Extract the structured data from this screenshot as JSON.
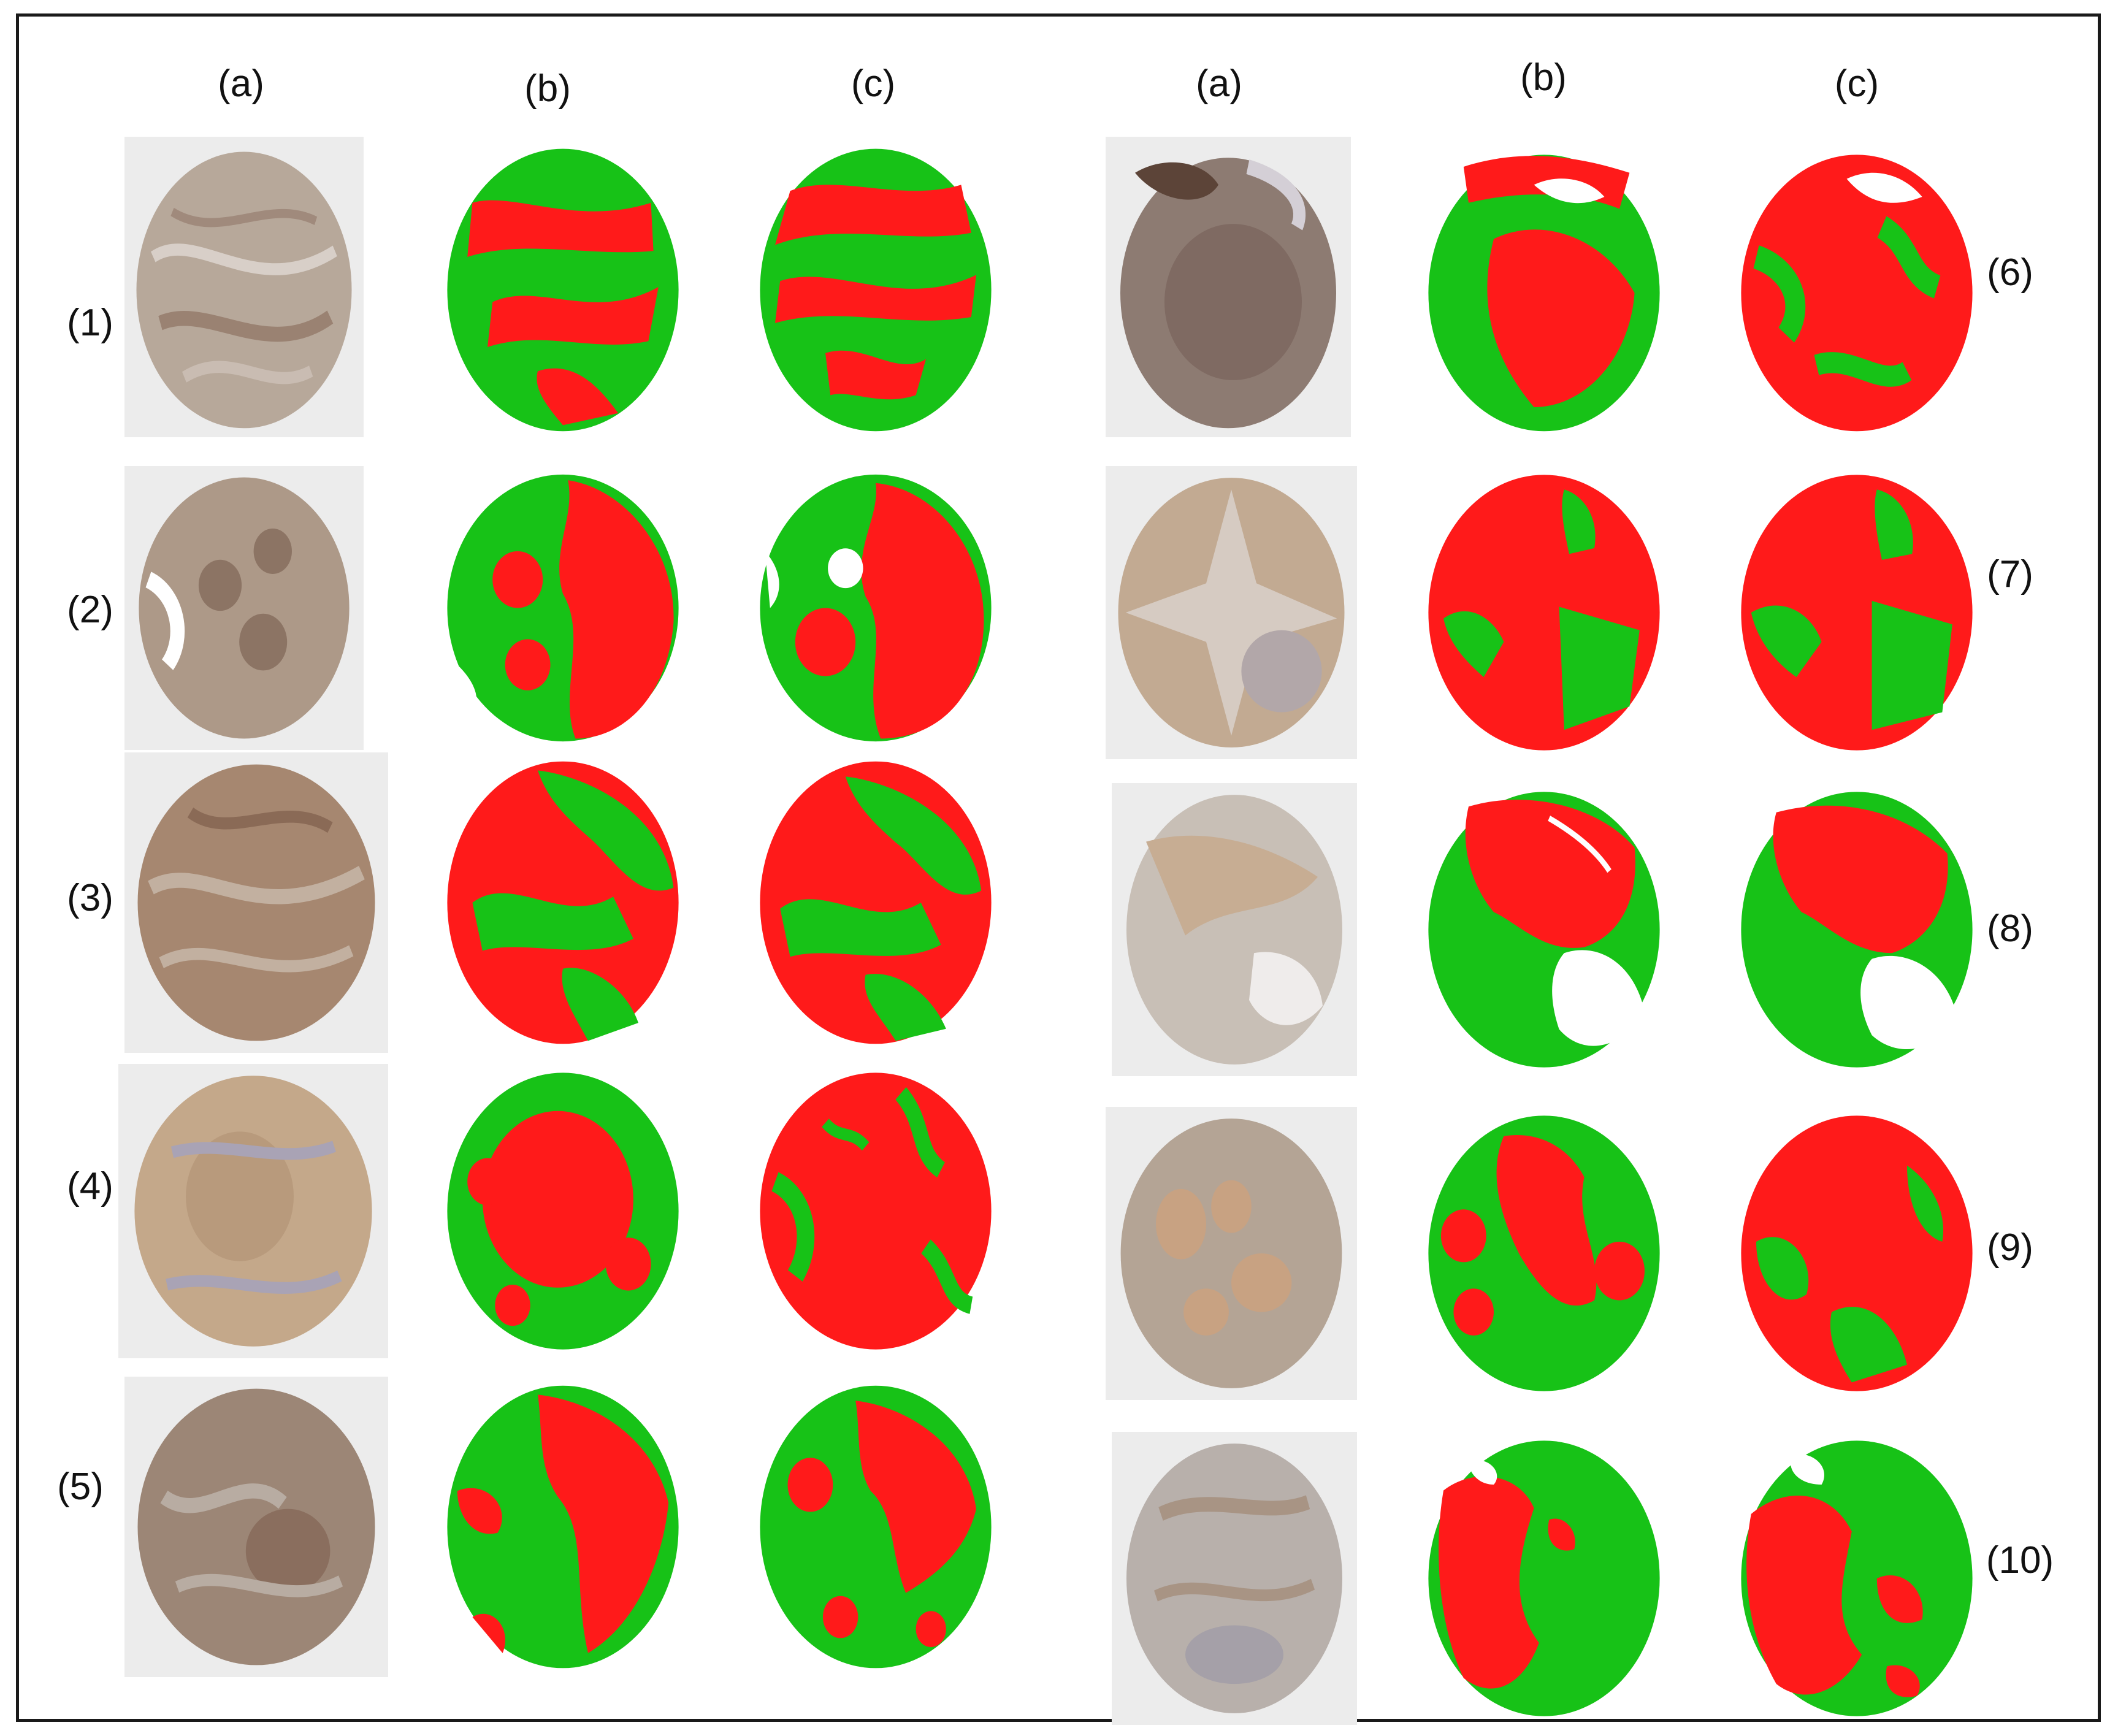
{
  "column_headers": [
    "(a)",
    "(b)",
    "(c)",
    "(a)",
    "(b)",
    "(c)"
  ],
  "row_labels": [
    "(1)",
    "(2)",
    "(3)",
    "(4)",
    "(5)",
    "(6)",
    "(7)",
    "(8)",
    "(9)",
    "(10)"
  ],
  "colors": {
    "tumor_region": "#ff1a1a",
    "stroma_region": "#17c217",
    "stained_tissue": "#b59a86",
    "slide_background": "#ececec",
    "frame": "#1a1a1a"
  },
  "panels": {
    "a": "IHC stained tissue core",
    "b": "red/green segmentation map",
    "c": "red/green segmentation map"
  }
}
